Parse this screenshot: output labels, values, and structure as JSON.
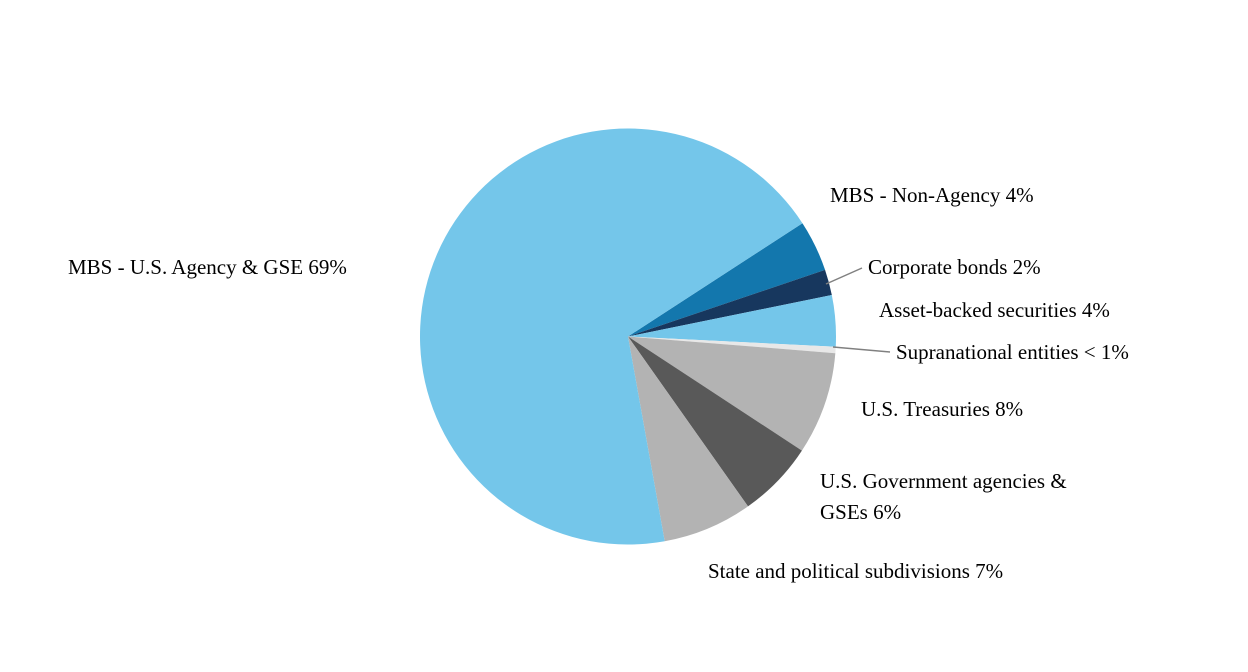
{
  "chart_data": {
    "type": "pie",
    "title": "",
    "legend_position": "outside-callout-labels",
    "start_angle_deg": 33,
    "direction": "clockwise",
    "slices": [
      {
        "id": "mbs-non-agency",
        "category": "MBS - Non-Agency",
        "value": 4,
        "label": "MBS - Non-Agency 4%",
        "color": "#1377AD"
      },
      {
        "id": "corporate-bonds",
        "category": "Corporate bonds",
        "value": 2,
        "label": "Corporate bonds 2%",
        "color": "#17375E"
      },
      {
        "id": "asset-backed",
        "category": "Asset-backed securities",
        "value": 4,
        "label": "Asset-backed securities 4%",
        "color": "#74C6EA"
      },
      {
        "id": "supranational",
        "category": "Supranational entities",
        "value": 0.5,
        "label": "Supranational entities < 1%",
        "color": "#E8E8E8"
      },
      {
        "id": "us-treasuries",
        "category": "U.S. Treasuries",
        "value": 8,
        "label": "U.S. Treasuries 8%",
        "color": "#B3B3B3"
      },
      {
        "id": "gov-agencies",
        "category": "U.S. Government agencies & GSEs",
        "value": 6,
        "label": "U.S. Government agencies & GSEs 6%",
        "color": "#595959"
      },
      {
        "id": "state-political",
        "category": "State and political subdivisions",
        "value": 7,
        "label": "State and political subdivisions 7%",
        "color": "#B3B3B3"
      },
      {
        "id": "mbs-us-agency",
        "category": "MBS - U.S. Agency & GSE",
        "value": 69,
        "label": "MBS - U.S. Agency & GSE 69%",
        "color": "#74C6EA"
      }
    ]
  }
}
